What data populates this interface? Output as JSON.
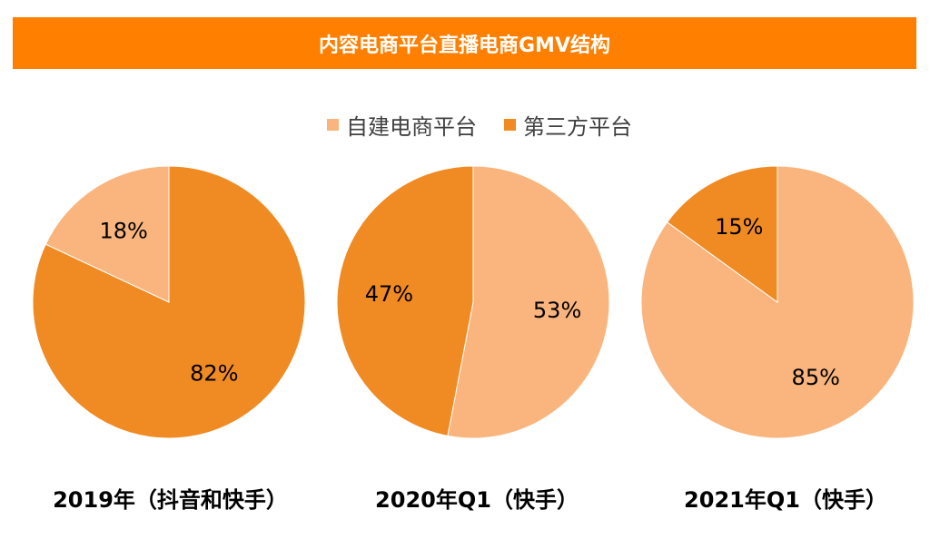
{
  "title": "内容电商平台直播电商GMV结构",
  "colors": {
    "banner": "#ff7f00",
    "self_built": "#f9b57d",
    "third_party": "#f08a22"
  },
  "legend": [
    {
      "label": "自建电商平台",
      "color": "#f9b57d"
    },
    {
      "label": "第三方平台",
      "color": "#f08a22"
    }
  ],
  "chart_data": [
    {
      "type": "pie",
      "title": "2019年（抖音和快手）",
      "categories": [
        "第三方平台",
        "自建电商平台"
      ],
      "values": [
        82,
        18
      ],
      "labels": [
        "82%",
        "18%"
      ]
    },
    {
      "type": "pie",
      "title": "2020年Q1（快手）",
      "categories": [
        "自建电商平台",
        "第三方平台"
      ],
      "values": [
        53,
        47
      ],
      "labels": [
        "53%",
        "47%"
      ]
    },
    {
      "type": "pie",
      "title": "2021年Q1（快手）",
      "categories": [
        "自建电商平台",
        "第三方平台"
      ],
      "values": [
        85,
        15
      ],
      "labels": [
        "85%",
        "15%"
      ]
    }
  ]
}
